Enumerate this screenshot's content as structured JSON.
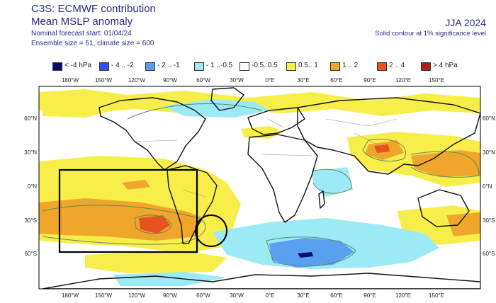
{
  "header": {
    "title": "C3S: ECMWF contribution",
    "subtitle": "Mean MSLP anomaly",
    "forecast_start": "Nominal forecast start: 01/04/24",
    "ensemble": "Ensemble size = 51, climate size = 600",
    "season": "JJA 2024",
    "significance_note": "Solid contour at 1% significance level"
  },
  "legend": [
    {
      "label": "< -4 hPa",
      "color": "#0a0a6e"
    },
    {
      "label": "- 4 .. -2",
      "color": "#2e53ee"
    },
    {
      "label": "- 2 .. -1",
      "color": "#5aa0f0"
    },
    {
      "label": "- 1 ..-0.5",
      "color": "#9ceaf5"
    },
    {
      "label": "-0.5..0.5",
      "color": "#ffffff"
    },
    {
      "label": "0.5.. 1",
      "color": "#f8ee4a"
    },
    {
      "label": "1 .. 2",
      "color": "#f0a62a"
    },
    {
      "label": "2 .. 4",
      "color": "#e8521e"
    },
    {
      "label": "> 4 hPa",
      "color": "#a82018"
    }
  ],
  "axes": {
    "lon_labels": [
      "180°W",
      "150°W",
      "120°W",
      "90°W",
      "60°W",
      "30°W",
      "0°E",
      "30°E",
      "60°E",
      "90°E",
      "120°E",
      "150°E"
    ],
    "lat_labels": [
      "60°N",
      "30°N",
      "0°N",
      "30°S",
      "60°S"
    ]
  },
  "colors": {
    "land_outline": "#111111",
    "border": "#888888",
    "annotation": "#000000"
  }
}
